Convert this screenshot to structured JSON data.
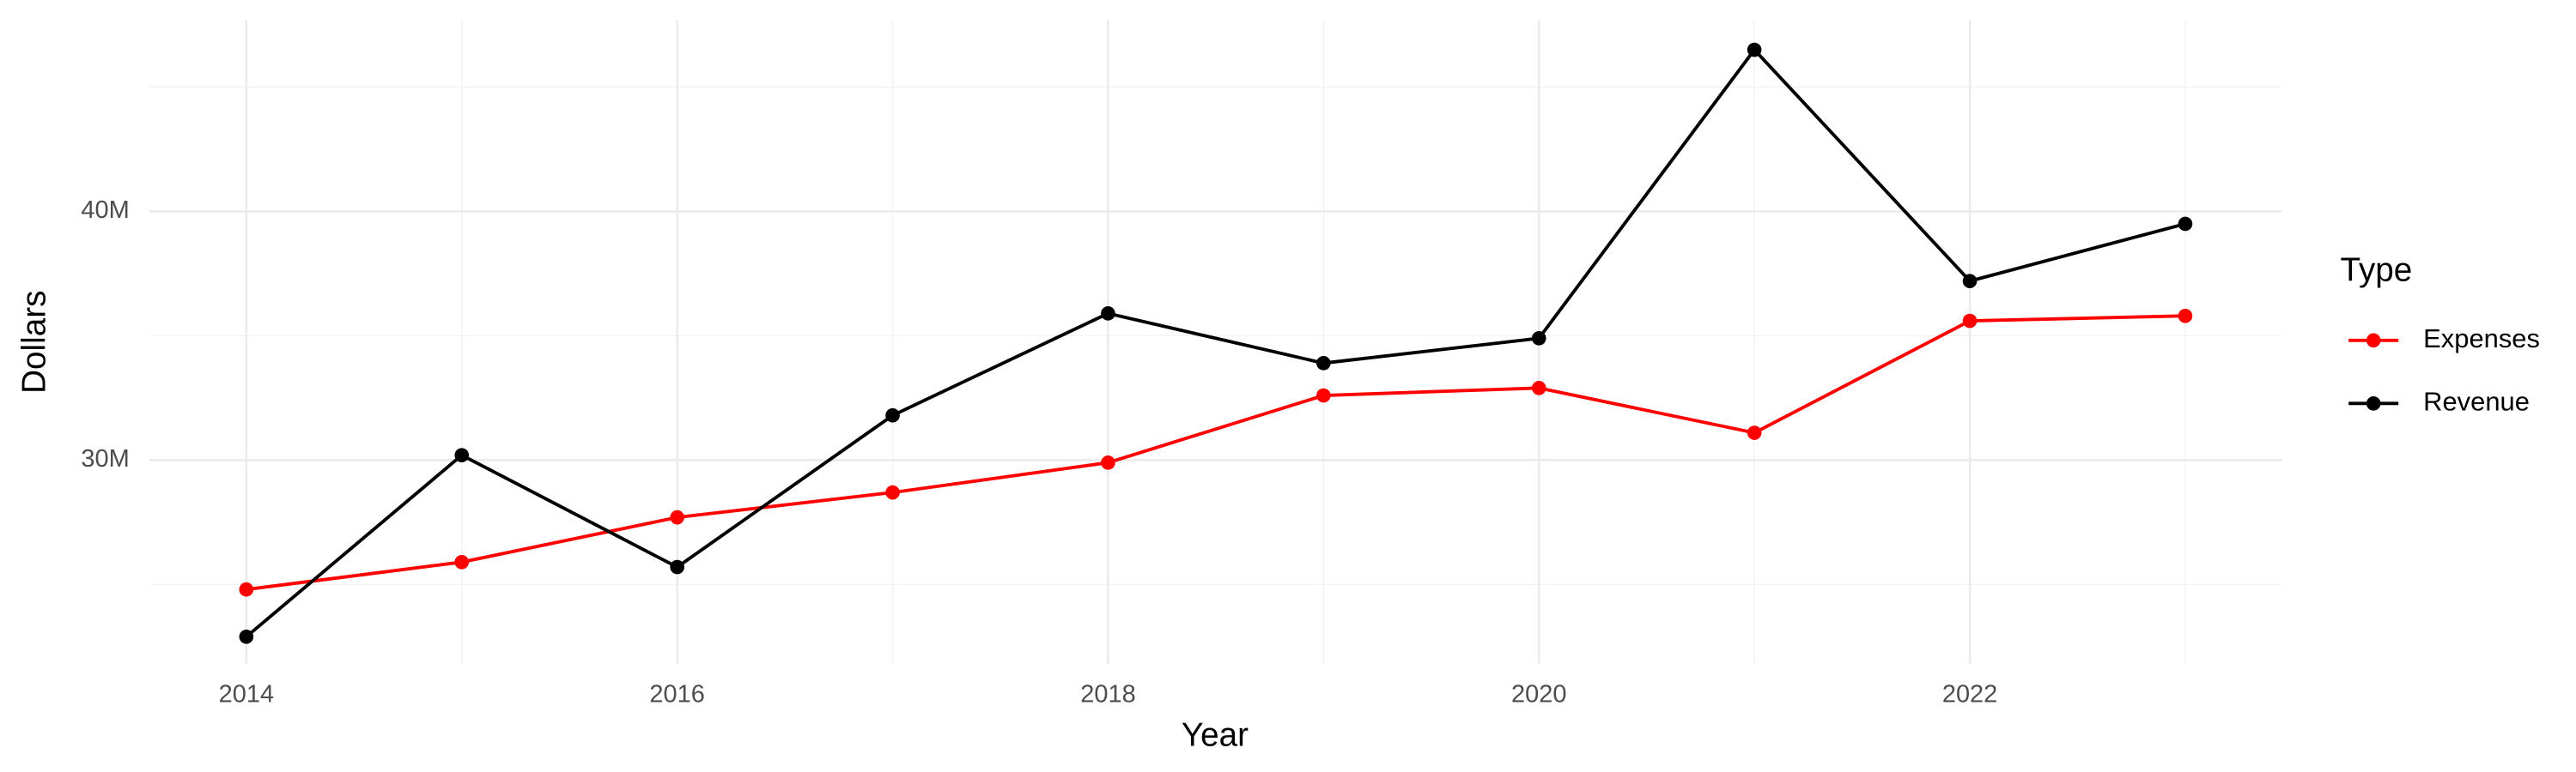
{
  "chart_data": {
    "type": "line",
    "x_label": "Year",
    "y_label": "Dollars",
    "legend_title": "Type",
    "x": [
      2014,
      2015,
      2016,
      2017,
      2018,
      2019,
      2020,
      2021,
      2022,
      2023
    ],
    "series": [
      {
        "name": "Expenses",
        "color": "#ff0000",
        "values": [
          24800000,
          25900000,
          27700000,
          28700000,
          29900000,
          32600000,
          32900000,
          31100000,
          35600000,
          35800000
        ]
      },
      {
        "name": "Revenue",
        "color": "#000000",
        "values": [
          22900000,
          30200000,
          25700000,
          31800000,
          35900000,
          33900000,
          34900000,
          46500000,
          37200000,
          39500000
        ]
      }
    ],
    "xlim": [
      2013.55,
      2023.45
    ],
    "xticks": [
      2014,
      2016,
      2018,
      2020,
      2022
    ],
    "ylim": [
      21800000,
      47700000
    ],
    "yticks": [
      {
        "value": 30000000,
        "label": "30M"
      },
      {
        "value": 40000000,
        "label": "40M"
      }
    ],
    "grid": true,
    "legend": "right"
  }
}
